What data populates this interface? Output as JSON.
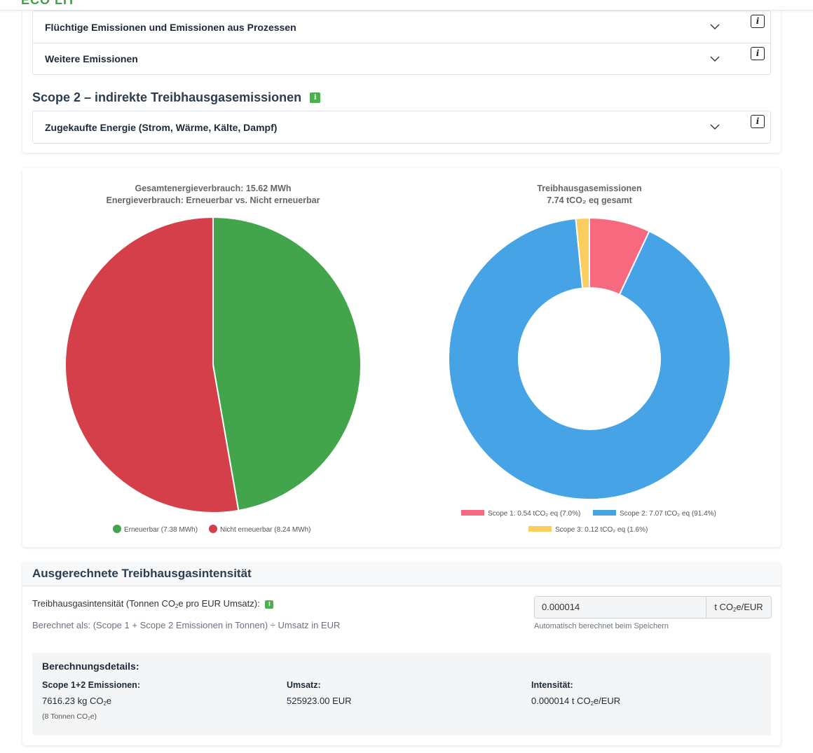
{
  "header": {
    "logo_fragment": "ECO LIT"
  },
  "accordions_top": [
    {
      "label": "Flüchtige Emissionen und Emissionen aus Prozessen"
    },
    {
      "label": "Weitere Emissionen"
    }
  ],
  "scope2": {
    "heading": "Scope 2 – indirekte Treibhausgasemissionen",
    "info_badge": "i",
    "accordion_label": "Zugekaufte Energie (Strom, Wärme, Kälte, Dampf)"
  },
  "info_glyph": "i",
  "colors": {
    "renewable": "#43a54b",
    "non_renewable": "#d43f4a",
    "scope1": "#f7697f",
    "scope2": "#46a3e6",
    "scope3": "#fbcd5f",
    "badge_green": "#4caf50"
  },
  "chart_data": [
    {
      "type": "pie",
      "title": "Gesamtenergieverbrauch: 15.62 MWh",
      "subtitle": "Energieverbrauch: Erneuerbar vs. Nicht erneuerbar",
      "legend_position": "bottom",
      "slices": [
        {
          "label": "Erneuerbar (7.38 MWh)",
          "value": 7.38,
          "color": "#43a54b"
        },
        {
          "label": "Nicht erneuerbar (8.24 MWh)",
          "value": 8.24,
          "color": "#d43f4a"
        }
      ]
    },
    {
      "type": "doughnut",
      "title": "Treibhausgasemissionen",
      "subtitle": "7.74 tCO₂ eq gesamt",
      "legend_position": "bottom",
      "slices": [
        {
          "label": "Scope 1: 0.54 tCO₂ eq (7.0%)",
          "value": 0.54,
          "color": "#f7697f"
        },
        {
          "label": "Scope 2: 7.07 tCO₂ eq (91.4%)",
          "value": 7.07,
          "color": "#46a3e6"
        },
        {
          "label": "Scope 3: 0.12 tCO₂ eq (1.6%)",
          "value": 0.12,
          "color": "#fbcd5f"
        }
      ]
    }
  ],
  "intensity": {
    "heading": "Ausgerechnete Treibhausgasintensität",
    "label_pre": "Treibhausgasintensität (Tonnen CO",
    "label_sub": "2",
    "label_post": "e pro EUR Umsatz):",
    "badge": "i",
    "calc_note": "Berechnet als: (Scope 1 + Scope 2 Emissionen in Tonnen) ÷ Umsatz in EUR",
    "input_value": "0.000014",
    "unit_pre": "t CO",
    "unit_sub": "2",
    "unit_post": "e/EUR",
    "auto_note": "Automatisch berechnet beim Speichern"
  },
  "details": {
    "title": "Berechnungsdetails:",
    "emissions": {
      "label": "Scope 1+2 Emissionen:",
      "value_pre": "7616.23 kg CO",
      "value_sub": "2",
      "value_post": "e",
      "sub_pre": "(8 Tonnen CO",
      "sub_sub": "2",
      "sub_post": "e)"
    },
    "revenue": {
      "label": "Umsatz:",
      "value": "525923.00 EUR"
    },
    "intensity": {
      "label": "Intensität:",
      "value_pre": "0.000014 t CO",
      "value_sub": "2",
      "value_post": "e/EUR"
    }
  }
}
